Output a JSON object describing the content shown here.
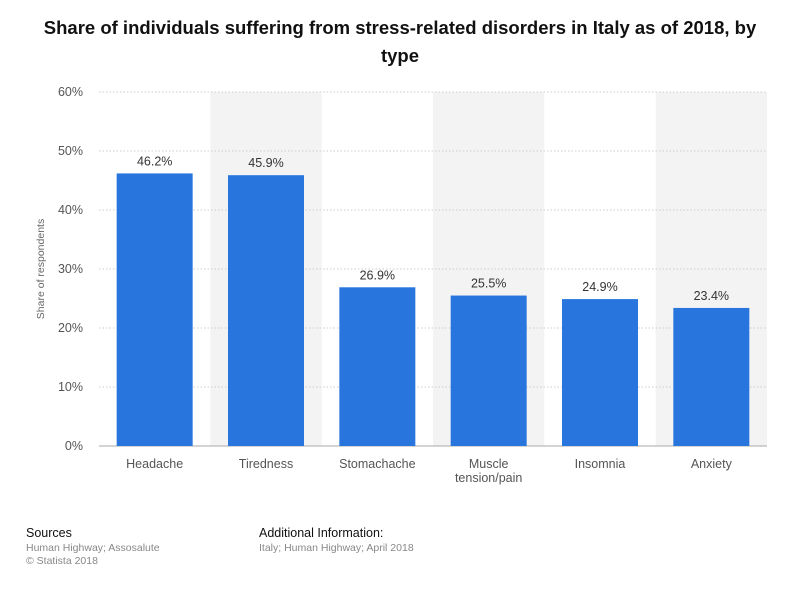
{
  "title": "Share of individuals suffering from stress-related disorders in Italy as of 2018, by type",
  "colors": {
    "bar": "#2876dd",
    "band": "#f3f3f3",
    "grid": "#cccccc",
    "axis_text": "#555555"
  },
  "chart_data": {
    "type": "bar",
    "categories": [
      "Headache",
      "Tiredness",
      "Stomachache",
      "Muscle tension/pain",
      "Insomnia",
      "Anxiety"
    ],
    "category_label_lines": [
      [
        "Headache"
      ],
      [
        "Tiredness"
      ],
      [
        "Stomachache"
      ],
      [
        "Muscle",
        "tension/pain"
      ],
      [
        "Insomnia"
      ],
      [
        "Anxiety"
      ]
    ],
    "values": [
      46.2,
      45.9,
      26.9,
      25.5,
      24.9,
      23.4
    ],
    "data_labels": [
      "46.2%",
      "45.9%",
      "26.9%",
      "25.5%",
      "24.9%",
      "23.4%"
    ],
    "ylabel": "Share of respondents",
    "xlabel": "",
    "ylim": [
      0,
      60
    ],
    "y_ticks": [
      0,
      10,
      20,
      30,
      40,
      50,
      60
    ],
    "y_tick_labels": [
      "0%",
      "10%",
      "20%",
      "30%",
      "40%",
      "50%",
      "60%"
    ],
    "grid": true,
    "legend": "none"
  },
  "footer": {
    "sources_heading": "Sources",
    "sources_text": "Human Highway; Assosalute",
    "copyright": "© Statista 2018",
    "additional_heading": "Additional Information:",
    "additional_text": "Italy; Human Highway; April 2018"
  }
}
